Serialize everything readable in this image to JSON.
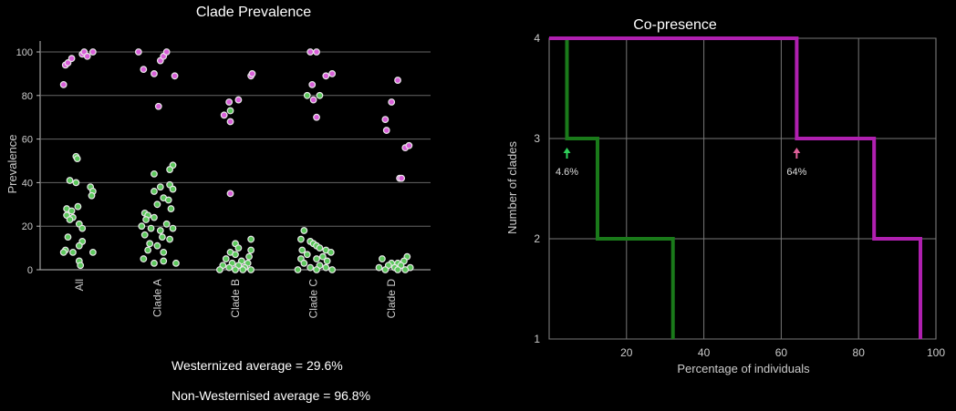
{
  "chart_data": [
    {
      "type": "scatter",
      "title": "Clade Prevalence",
      "ylabel": "Prevalence",
      "xlabel": "",
      "categories": [
        "All",
        "Clade A",
        "Clade B",
        "Clade C",
        "Clade D"
      ],
      "ylim": [
        0,
        100
      ],
      "yticks": [
        0,
        20,
        40,
        60,
        80,
        100
      ],
      "grid": "horizontal",
      "series": [
        {
          "color": "#d95fd9",
          "points": [
            {
              "cat": "All",
              "jit": -0.25,
              "y": 85
            },
            {
              "cat": "All",
              "jit": -0.22,
              "y": 94
            },
            {
              "cat": "All",
              "jit": -0.18,
              "y": 95
            },
            {
              "cat": "All",
              "jit": -0.12,
              "y": 97
            },
            {
              "cat": "All",
              "jit": 0.05,
              "y": 99
            },
            {
              "cat": "All",
              "jit": 0.08,
              "y": 100
            },
            {
              "cat": "All",
              "jit": 0.13,
              "y": 98
            },
            {
              "cat": "All",
              "jit": 0.22,
              "y": 100
            },
            {
              "cat": "Clade A",
              "jit": -0.3,
              "y": 100
            },
            {
              "cat": "Clade A",
              "jit": -0.22,
              "y": 92
            },
            {
              "cat": "Clade A",
              "jit": -0.05,
              "y": 90
            },
            {
              "cat": "Clade A",
              "jit": 0.05,
              "y": 96
            },
            {
              "cat": "Clade A",
              "jit": 0.1,
              "y": 98
            },
            {
              "cat": "Clade A",
              "jit": 0.15,
              "y": 100
            },
            {
              "cat": "Clade A",
              "jit": 0.28,
              "y": 89
            },
            {
              "cat": "Clade A",
              "jit": 0.02,
              "y": 75
            },
            {
              "cat": "Clade B",
              "jit": -0.18,
              "y": 71
            },
            {
              "cat": "Clade B",
              "jit": -0.1,
              "y": 77
            },
            {
              "cat": "Clade B",
              "jit": -0.08,
              "y": 68
            },
            {
              "cat": "Clade B",
              "jit": 0.05,
              "y": 78
            },
            {
              "cat": "Clade B",
              "jit": 0.25,
              "y": 89
            },
            {
              "cat": "Clade B",
              "jit": 0.27,
              "y": 90
            },
            {
              "cat": "Clade B",
              "jit": -0.08,
              "y": 35
            },
            {
              "cat": "Clade C",
              "jit": -0.05,
              "y": 100
            },
            {
              "cat": "Clade C",
              "jit": 0.05,
              "y": 100
            },
            {
              "cat": "Clade C",
              "jit": -0.02,
              "y": 85
            },
            {
              "cat": "Clade C",
              "jit": 0.0,
              "y": 78
            },
            {
              "cat": "Clade C",
              "jit": 0.2,
              "y": 89
            },
            {
              "cat": "Clade C",
              "jit": 0.3,
              "y": 90
            },
            {
              "cat": "Clade C",
              "jit": 0.05,
              "y": 70
            },
            {
              "cat": "Clade D",
              "jit": 0.1,
              "y": 87
            },
            {
              "cat": "Clade D",
              "jit": 0.0,
              "y": 77
            },
            {
              "cat": "Clade D",
              "jit": -0.1,
              "y": 69
            },
            {
              "cat": "Clade D",
              "jit": -0.08,
              "y": 64
            },
            {
              "cat": "Clade D",
              "jit": 0.22,
              "y": 56
            },
            {
              "cat": "Clade D",
              "jit": 0.28,
              "y": 57
            },
            {
              "cat": "Clade D",
              "jit": 0.13,
              "y": 42
            },
            {
              "cat": "Clade D",
              "jit": 0.16,
              "y": 42
            }
          ]
        },
        {
          "color": "#5cc85c",
          "points": [
            {
              "cat": "All",
              "jit": -0.05,
              "y": 52
            },
            {
              "cat": "All",
              "jit": -0.03,
              "y": 51
            },
            {
              "cat": "All",
              "jit": -0.15,
              "y": 41
            },
            {
              "cat": "All",
              "jit": -0.05,
              "y": 40
            },
            {
              "cat": "All",
              "jit": 0.18,
              "y": 38
            },
            {
              "cat": "All",
              "jit": 0.22,
              "y": 36
            },
            {
              "cat": "All",
              "jit": 0.2,
              "y": 34
            },
            {
              "cat": "All",
              "jit": -0.2,
              "y": 28
            },
            {
              "cat": "All",
              "jit": -0.12,
              "y": 27
            },
            {
              "cat": "All",
              "jit": -0.02,
              "y": 29
            },
            {
              "cat": "All",
              "jit": -0.2,
              "y": 25
            },
            {
              "cat": "All",
              "jit": -0.1,
              "y": 24
            },
            {
              "cat": "All",
              "jit": -0.15,
              "y": 23
            },
            {
              "cat": "All",
              "jit": 0.0,
              "y": 21
            },
            {
              "cat": "All",
              "jit": 0.05,
              "y": 19
            },
            {
              "cat": "All",
              "jit": -0.18,
              "y": 15
            },
            {
              "cat": "All",
              "jit": 0.05,
              "y": 13
            },
            {
              "cat": "All",
              "jit": 0.0,
              "y": 11
            },
            {
              "cat": "All",
              "jit": -0.22,
              "y": 9
            },
            {
              "cat": "All",
              "jit": -0.25,
              "y": 8
            },
            {
              "cat": "All",
              "jit": -0.1,
              "y": 8
            },
            {
              "cat": "All",
              "jit": 0.22,
              "y": 8
            },
            {
              "cat": "All",
              "jit": 0.0,
              "y": 4
            },
            {
              "cat": "All",
              "jit": 0.02,
              "y": 2
            },
            {
              "cat": "Clade A",
              "jit": 0.25,
              "y": 48
            },
            {
              "cat": "Clade A",
              "jit": 0.2,
              "y": 46
            },
            {
              "cat": "Clade A",
              "jit": -0.05,
              "y": 44
            },
            {
              "cat": "Clade A",
              "jit": 0.2,
              "y": 39
            },
            {
              "cat": "Clade A",
              "jit": 0.25,
              "y": 37
            },
            {
              "cat": "Clade A",
              "jit": 0.05,
              "y": 38
            },
            {
              "cat": "Clade A",
              "jit": -0.05,
              "y": 36
            },
            {
              "cat": "Clade A",
              "jit": 0.1,
              "y": 33
            },
            {
              "cat": "Clade A",
              "jit": 0.18,
              "y": 32
            },
            {
              "cat": "Clade A",
              "jit": 0.0,
              "y": 30
            },
            {
              "cat": "Clade A",
              "jit": 0.22,
              "y": 28
            },
            {
              "cat": "Clade A",
              "jit": -0.2,
              "y": 26
            },
            {
              "cat": "Clade A",
              "jit": -0.15,
              "y": 25
            },
            {
              "cat": "Clade A",
              "jit": -0.05,
              "y": 24
            },
            {
              "cat": "Clade A",
              "jit": -0.18,
              "y": 23
            },
            {
              "cat": "Clade A",
              "jit": 0.15,
              "y": 21
            },
            {
              "cat": "Clade A",
              "jit": -0.25,
              "y": 20
            },
            {
              "cat": "Clade A",
              "jit": -0.1,
              "y": 19
            },
            {
              "cat": "Clade A",
              "jit": 0.25,
              "y": 19
            },
            {
              "cat": "Clade A",
              "jit": 0.05,
              "y": 18
            },
            {
              "cat": "Clade A",
              "jit": -0.2,
              "y": 16
            },
            {
              "cat": "Clade A",
              "jit": 0.08,
              "y": 15
            },
            {
              "cat": "Clade A",
              "jit": 0.2,
              "y": 14
            },
            {
              "cat": "Clade A",
              "jit": -0.12,
              "y": 12
            },
            {
              "cat": "Clade A",
              "jit": 0.0,
              "y": 11
            },
            {
              "cat": "Clade A",
              "jit": -0.15,
              "y": 9
            },
            {
              "cat": "Clade A",
              "jit": 0.1,
              "y": 8
            },
            {
              "cat": "Clade A",
              "jit": -0.22,
              "y": 5
            },
            {
              "cat": "Clade A",
              "jit": 0.1,
              "y": 4
            },
            {
              "cat": "Clade A",
              "jit": -0.05,
              "y": 3
            },
            {
              "cat": "Clade A",
              "jit": 0.3,
              "y": 3
            },
            {
              "cat": "Clade B",
              "jit": -0.08,
              "y": 73
            },
            {
              "cat": "Clade B",
              "jit": 0.25,
              "y": 14
            },
            {
              "cat": "Clade B",
              "jit": 0.0,
              "y": 12
            },
            {
              "cat": "Clade B",
              "jit": 0.05,
              "y": 10
            },
            {
              "cat": "Clade B",
              "jit": 0.25,
              "y": 9
            },
            {
              "cat": "Clade B",
              "jit": -0.08,
              "y": 8
            },
            {
              "cat": "Clade B",
              "jit": 0.0,
              "y": 7
            },
            {
              "cat": "Clade B",
              "jit": 0.22,
              "y": 6
            },
            {
              "cat": "Clade B",
              "jit": -0.15,
              "y": 5
            },
            {
              "cat": "Clade B",
              "jit": 0.1,
              "y": 4
            },
            {
              "cat": "Clade B",
              "jit": -0.05,
              "y": 3
            },
            {
              "cat": "Clade B",
              "jit": 0.2,
              "y": 3
            },
            {
              "cat": "Clade B",
              "jit": -0.2,
              "y": 2
            },
            {
              "cat": "Clade B",
              "jit": 0.05,
              "y": 2
            },
            {
              "cat": "Clade B",
              "jit": 0.15,
              "y": 1
            },
            {
              "cat": "Clade B",
              "jit": -0.1,
              "y": 1
            },
            {
              "cat": "Clade B",
              "jit": 0.0,
              "y": 0
            },
            {
              "cat": "Clade B",
              "jit": 0.25,
              "y": 0
            },
            {
              "cat": "Clade B",
              "jit": -0.25,
              "y": 0
            },
            {
              "cat": "Clade B",
              "jit": 0.12,
              "y": 0
            },
            {
              "cat": "Clade C",
              "jit": -0.1,
              "y": 80
            },
            {
              "cat": "Clade C",
              "jit": 0.1,
              "y": 80
            },
            {
              "cat": "Clade C",
              "jit": -0.15,
              "y": 18
            },
            {
              "cat": "Clade C",
              "jit": -0.2,
              "y": 14
            },
            {
              "cat": "Clade C",
              "jit": -0.05,
              "y": 13
            },
            {
              "cat": "Clade C",
              "jit": 0.0,
              "y": 12
            },
            {
              "cat": "Clade C",
              "jit": 0.05,
              "y": 11
            },
            {
              "cat": "Clade C",
              "jit": 0.1,
              "y": 10
            },
            {
              "cat": "Clade C",
              "jit": -0.18,
              "y": 9
            },
            {
              "cat": "Clade C",
              "jit": 0.2,
              "y": 9
            },
            {
              "cat": "Clade C",
              "jit": 0.28,
              "y": 8
            },
            {
              "cat": "Clade C",
              "jit": -0.1,
              "y": 7
            },
            {
              "cat": "Clade C",
              "jit": 0.15,
              "y": 6
            },
            {
              "cat": "Clade C",
              "jit": -0.2,
              "y": 5
            },
            {
              "cat": "Clade C",
              "jit": 0.05,
              "y": 5
            },
            {
              "cat": "Clade C",
              "jit": 0.22,
              "y": 4
            },
            {
              "cat": "Clade C",
              "jit": -0.15,
              "y": 3
            },
            {
              "cat": "Clade C",
              "jit": 0.1,
              "y": 2
            },
            {
              "cat": "Clade C",
              "jit": -0.05,
              "y": 1
            },
            {
              "cat": "Clade C",
              "jit": 0.2,
              "y": 1
            },
            {
              "cat": "Clade C",
              "jit": 0.3,
              "y": 0
            },
            {
              "cat": "Clade C",
              "jit": -0.25,
              "y": 0
            },
            {
              "cat": "Clade C",
              "jit": 0.05,
              "y": 0
            },
            {
              "cat": "Clade D",
              "jit": -0.15,
              "y": 5
            },
            {
              "cat": "Clade D",
              "jit": 0.25,
              "y": 6
            },
            {
              "cat": "Clade D",
              "jit": 0.2,
              "y": 4
            },
            {
              "cat": "Clade D",
              "jit": 0.1,
              "y": 3
            },
            {
              "cat": "Clade D",
              "jit": 0.0,
              "y": 3
            },
            {
              "cat": "Clade D",
              "jit": -0.05,
              "y": 2
            },
            {
              "cat": "Clade D",
              "jit": 0.15,
              "y": 2
            },
            {
              "cat": "Clade D",
              "jit": -0.2,
              "y": 1
            },
            {
              "cat": "Clade D",
              "jit": 0.05,
              "y": 1
            },
            {
              "cat": "Clade D",
              "jit": 0.3,
              "y": 1
            },
            {
              "cat": "Clade D",
              "jit": -0.1,
              "y": 0
            },
            {
              "cat": "Clade D",
              "jit": 0.22,
              "y": 0
            },
            {
              "cat": "Clade D",
              "jit": 0.1,
              "y": 0
            }
          ]
        }
      ]
    },
    {
      "type": "line",
      "title": "Co-presence",
      "xlabel": "Percentage of individuals",
      "ylabel": "Number of clades",
      "xlim": [
        0,
        100
      ],
      "ylim": [
        1,
        4
      ],
      "xticks": [
        "20",
        "40",
        "60",
        "80",
        "100"
      ],
      "yticks": [
        "1",
        "2",
        "3",
        "4"
      ],
      "grid": true,
      "series": [
        {
          "color": "#1a7a1a",
          "step": [
            [
              0,
              4
            ],
            [
              4.6,
              4
            ],
            [
              4.6,
              3
            ],
            [
              12.5,
              3
            ],
            [
              12.5,
              2
            ],
            [
              32,
              2
            ],
            [
              32,
              1
            ]
          ]
        },
        {
          "color": "#b020b0",
          "step": [
            [
              0,
              4
            ],
            [
              64,
              4
            ],
            [
              64,
              3
            ],
            [
              84,
              3
            ],
            [
              84,
              2
            ],
            [
              96,
              2
            ],
            [
              96,
              1
            ]
          ]
        }
      ],
      "annotations": [
        {
          "text": "4.6%",
          "x": 4.6,
          "y": 3,
          "color": "#2fd05a"
        },
        {
          "text": "64%",
          "x": 64,
          "y": 3,
          "color": "#e0609a"
        }
      ]
    }
  ],
  "notes": {
    "westernized": "Westernized average = 29.6%",
    "non_westernised": "Non-Westernised average = 96.8%"
  }
}
